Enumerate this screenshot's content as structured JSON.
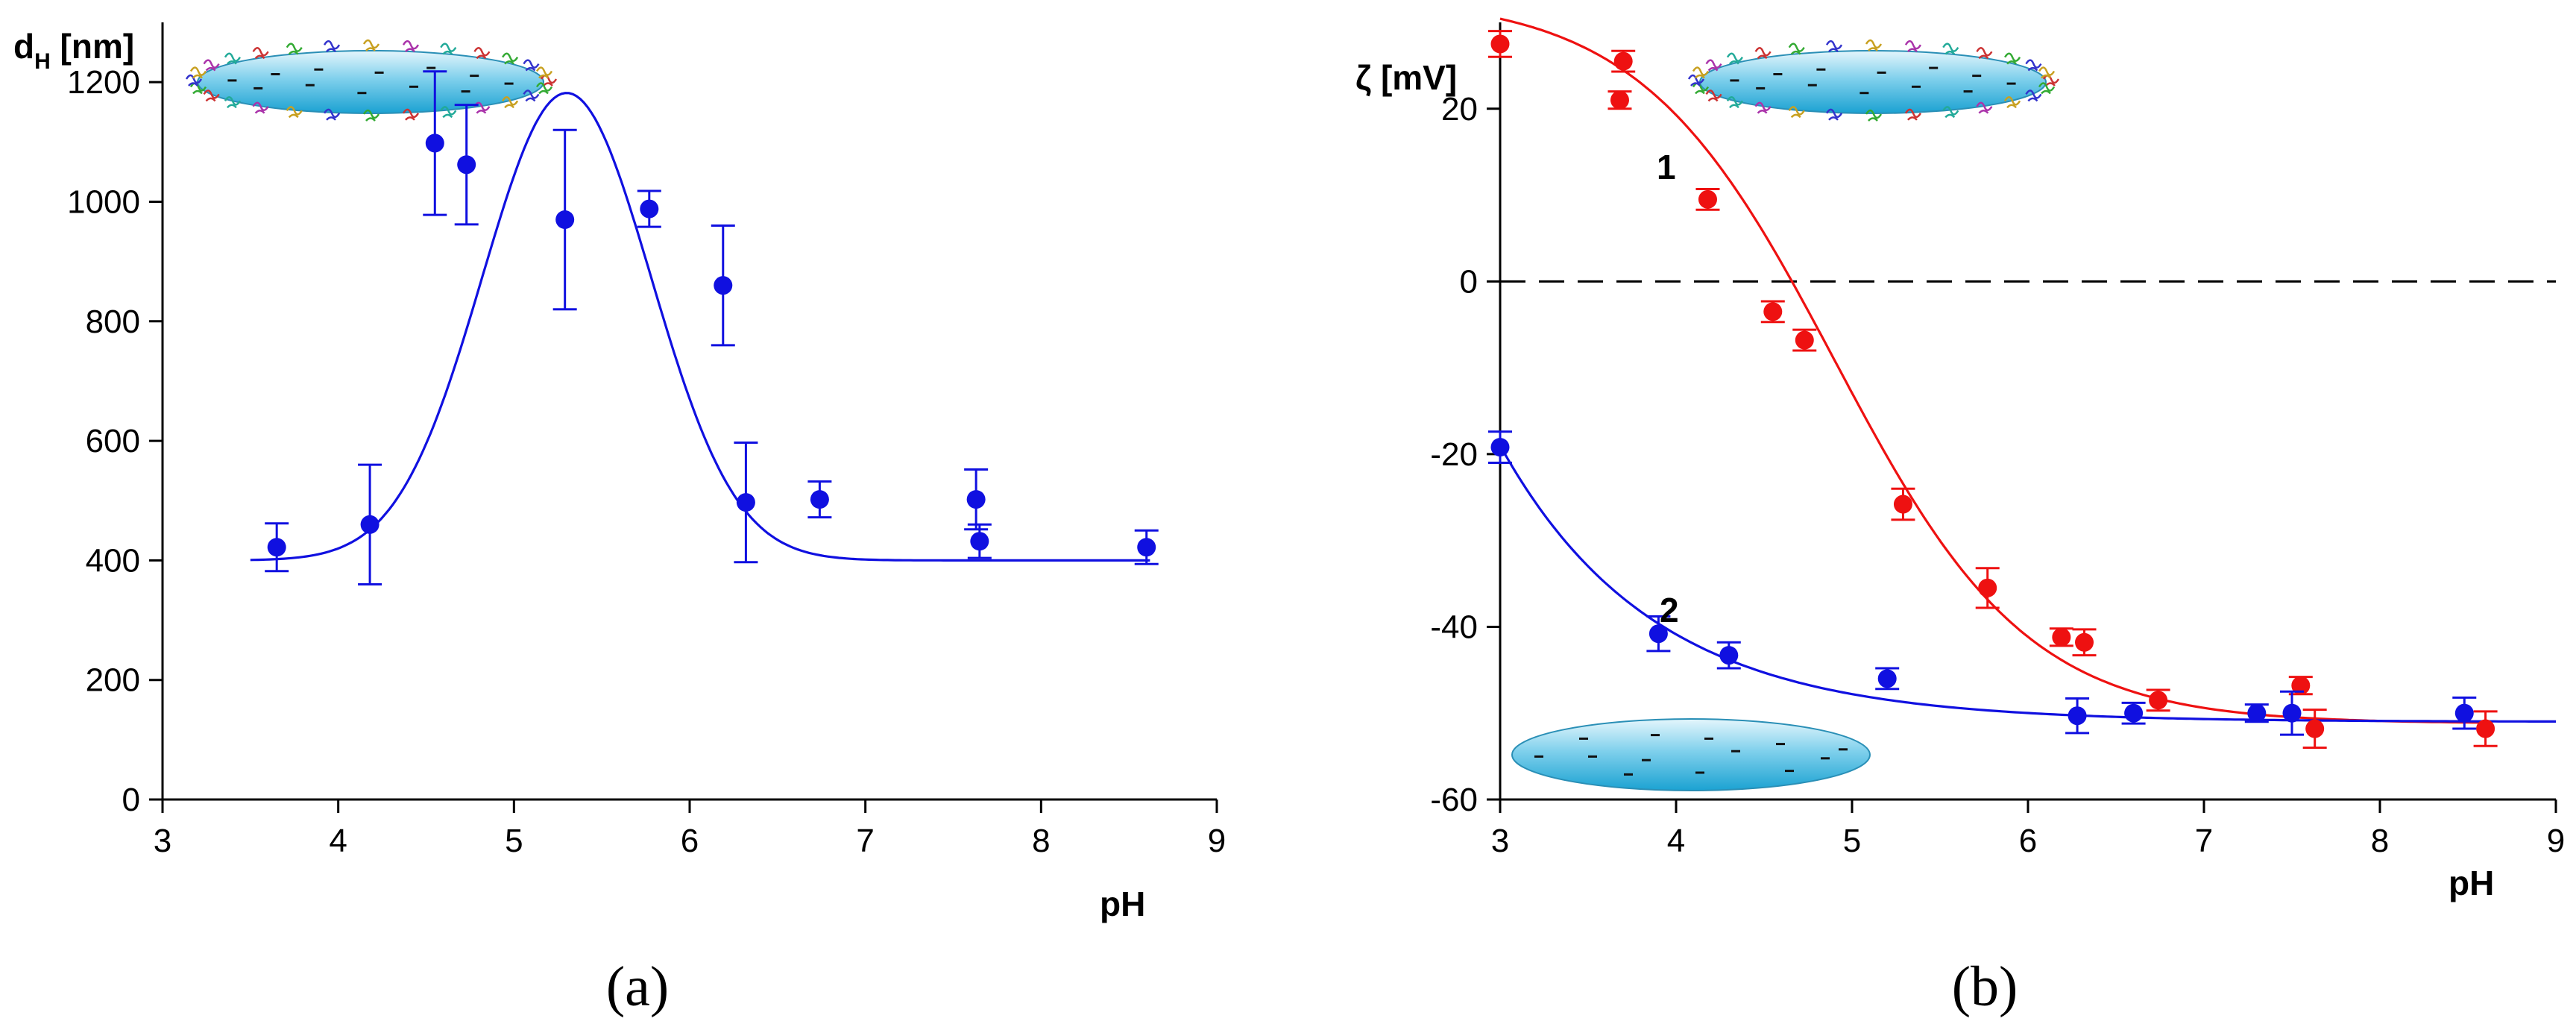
{
  "figure_labels": {
    "a": "(a)",
    "b": "(b)"
  },
  "colors": {
    "blue": "#1010e0",
    "red": "#ee1111",
    "axis": "#000000",
    "zero_line": "#000000"
  },
  "chart_data": [
    {
      "id": "a",
      "type": "scatter",
      "ylabel_main": "d",
      "ylabel_sub": "H",
      "ylabel_rest": " [nm]",
      "xlabel": "pH",
      "xlim": [
        3,
        9
      ],
      "ylim": [
        0,
        1300
      ],
      "xticks": [
        3,
        4,
        5,
        6,
        7,
        8,
        9
      ],
      "yticks": [
        0,
        200,
        400,
        600,
        800,
        1000,
        1200
      ],
      "grid": false,
      "series": [
        {
          "name": "dH",
          "color": "#1010e0",
          "points": [
            {
              "x": 3.65,
              "y": 422,
              "err": 40
            },
            {
              "x": 4.18,
              "y": 460,
              "err": 100
            },
            {
              "x": 4.55,
              "y": 1098,
              "err": 120
            },
            {
              "x": 4.73,
              "y": 1062,
              "err": 100
            },
            {
              "x": 5.29,
              "y": 970,
              "err": 150
            },
            {
              "x": 5.77,
              "y": 988,
              "err": 30
            },
            {
              "x": 6.19,
              "y": 860,
              "err": 100
            },
            {
              "x": 6.32,
              "y": 497,
              "err": 100
            },
            {
              "x": 6.74,
              "y": 502,
              "err": 30
            },
            {
              "x": 7.63,
              "y": 502,
              "err": 50
            },
            {
              "x": 7.65,
              "y": 432,
              "err": 28
            },
            {
              "x": 8.6,
              "y": 422,
              "err": 28
            }
          ],
          "fit": {
            "model": "gaussian",
            "baseline": 400,
            "amplitude": 782,
            "center": 5.3,
            "sigma": 0.48,
            "x_from": 3.5,
            "x_to": 8.62
          }
        }
      ]
    },
    {
      "id": "b",
      "type": "scatter",
      "ylabel": "ζ [mV]",
      "xlabel": "pH",
      "xlim": [
        3,
        9
      ],
      "ylim": [
        -60,
        30
      ],
      "xticks": [
        3,
        4,
        5,
        6,
        7,
        8,
        9
      ],
      "yticks": [
        -60,
        -40,
        -20,
        0,
        20
      ],
      "zero_line": true,
      "grid": false,
      "series": [
        {
          "name": "1",
          "color": "#ee1111",
          "points": [
            {
              "x": 3.0,
              "y": 27.5,
              "err": 1.5
            },
            {
              "x": 3.68,
              "y": 21.0,
              "err": 1.0
            },
            {
              "x": 3.7,
              "y": 25.5,
              "err": 1.2
            },
            {
              "x": 4.18,
              "y": 9.5,
              "err": 1.2
            },
            {
              "x": 4.55,
              "y": -3.5,
              "err": 1.2
            },
            {
              "x": 4.73,
              "y": -6.8,
              "err": 1.2
            },
            {
              "x": 5.29,
              "y": -25.8,
              "err": 1.8
            },
            {
              "x": 5.77,
              "y": -35.5,
              "err": 2.3
            },
            {
              "x": 6.19,
              "y": -41.2,
              "err": 1.0
            },
            {
              "x": 6.32,
              "y": -41.8,
              "err": 1.5
            },
            {
              "x": 6.74,
              "y": -48.5,
              "err": 1.2
            },
            {
              "x": 7.55,
              "y": -46.8,
              "err": 1.0
            },
            {
              "x": 7.63,
              "y": -51.8,
              "err": 2.2
            },
            {
              "x": 8.6,
              "y": -51.8,
              "err": 2.0
            }
          ],
          "fit": {
            "model": "sigmoid",
            "top": 33,
            "bottom": -51.2,
            "midpoint": 4.9,
            "slope": 0.55,
            "x_from": 3.0,
            "x_to": 8.62
          }
        },
        {
          "name": "2",
          "color": "#1010e0",
          "points": [
            {
              "x": 3.0,
              "y": -19.2,
              "err": 1.8
            },
            {
              "x": 3.9,
              "y": -40.8,
              "err": 2.0
            },
            {
              "x": 4.3,
              "y": -43.3,
              "err": 1.5
            },
            {
              "x": 5.2,
              "y": -46.0,
              "err": 1.2
            },
            {
              "x": 6.28,
              "y": -50.3,
              "err": 2.0
            },
            {
              "x": 6.6,
              "y": -50.0,
              "err": 1.2
            },
            {
              "x": 7.3,
              "y": -50.0,
              "err": 1.0
            },
            {
              "x": 7.5,
              "y": -50.0,
              "err": 2.5
            },
            {
              "x": 8.48,
              "y": -50.0,
              "err": 1.8
            }
          ],
          "fit": {
            "model": "exp_decay",
            "plateau": -51,
            "start_y": -19,
            "x0": 3.0,
            "k": 1.15,
            "x_from": 3.0,
            "x_to": 9.0
          }
        }
      ],
      "annotations": [
        "1",
        "2"
      ]
    }
  ],
  "illustrations": [
    {
      "kind": "particle-with-proteins",
      "panel": "a"
    },
    {
      "kind": "particle-with-proteins",
      "panel": "b"
    },
    {
      "kind": "bare-particle",
      "panel": "b"
    }
  ]
}
